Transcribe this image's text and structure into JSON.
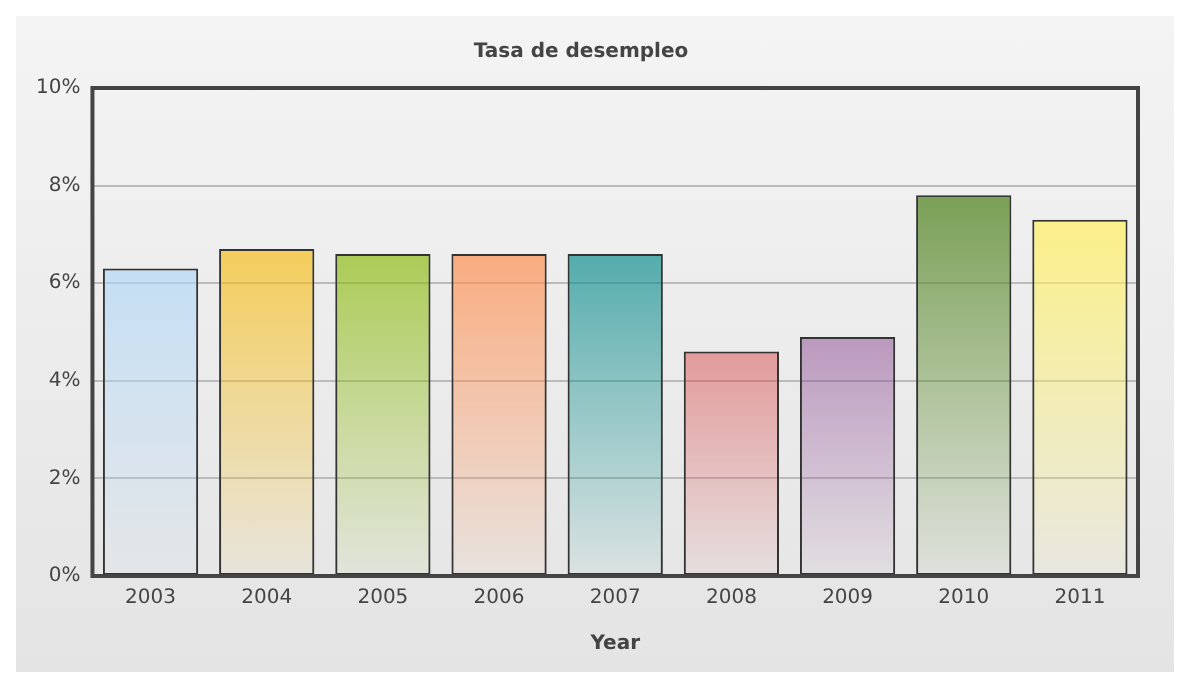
{
  "chart_data": {
    "type": "bar",
    "title": "Tasa de desempleo",
    "xlabel": "Year",
    "categories": [
      "2003",
      "2004",
      "2005",
      "2006",
      "2007",
      "2008",
      "2009",
      "2010",
      "2011"
    ],
    "values": [
      6.3,
      6.7,
      6.6,
      6.6,
      6.6,
      4.6,
      4.9,
      7.8,
      7.3
    ],
    "colors": [
      "#aed6f7",
      "#f6bd16",
      "#8bba0d",
      "#ff8c4a",
      "#0a8c8c",
      "#d94545",
      "#8b4a92",
      "#5a8a2c",
      "#fff066"
    ],
    "ylim": [
      0,
      10
    ],
    "yticks": [
      {
        "value": 0,
        "label": "0%"
      },
      {
        "value": 2,
        "label": "2%"
      },
      {
        "value": 4,
        "label": "4%"
      },
      {
        "value": 6,
        "label": "6%"
      },
      {
        "value": 8,
        "label": "8%"
      },
      {
        "value": 10,
        "label": "10%"
      }
    ],
    "grid": "y"
  }
}
